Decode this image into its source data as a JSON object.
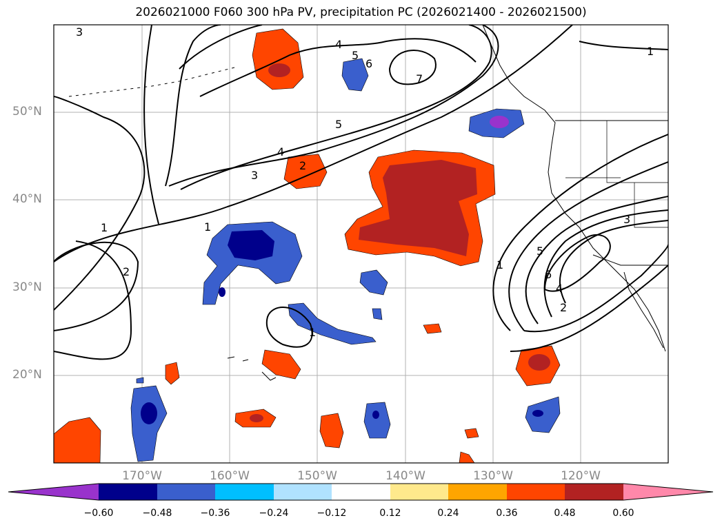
{
  "title": "2026021000 F060 300 hPa PV, precipitation PC (2026021400 - 2026021500)",
  "lat_labels": [
    "50°N",
    "40°N",
    "30°N",
    "20°N"
  ],
  "lon_labels": [
    "170°W",
    "160°W",
    "150°W",
    "140°W",
    "130°W",
    "120°W"
  ],
  "colorbar": {
    "ticks": [
      "−0.60",
      "−0.48",
      "−0.36",
      "−0.24",
      "−0.12",
      "0.12",
      "0.24",
      "0.36",
      "0.48",
      "0.60"
    ],
    "colors": [
      "#9933cc",
      "#00008b",
      "#3a5fcd",
      "#00bfff",
      "#b0e2ff",
      "#ffffff",
      "#ffe98c",
      "#ffa500",
      "#ff4500",
      "#b22222",
      "#ff88aa"
    ]
  },
  "colors": {
    "neg_strong": "#00008b",
    "neg_mid": "#3a5fcd",
    "neg_light": "#00bfff",
    "pos_light": "#ffe98c",
    "pos_mid": "#ff4500",
    "pos_strong": "#b22222"
  },
  "contour_labels": [
    "4",
    "3",
    "5",
    "6",
    "7",
    "1",
    "5",
    "4",
    "3",
    "2",
    "1",
    "1",
    "2",
    "1",
    "5",
    "6",
    "4",
    "2",
    "3",
    "1"
  ]
}
